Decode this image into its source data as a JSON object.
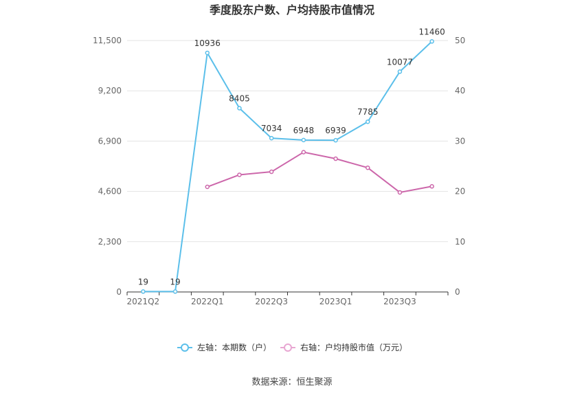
{
  "chart_data": {
    "type": "line",
    "title": "季度股东户数、户均持股市值情况",
    "x": [
      "2021Q2",
      "2021Q3",
      "2022Q1",
      "2022Q2",
      "2022Q3",
      "2022Q4",
      "2023Q1",
      "2023Q2",
      "2023Q3",
      "2023Q4"
    ],
    "x_tick_labels": [
      "2021Q2",
      "2022Q1",
      "2022Q3",
      "2023Q1",
      "2023Q3"
    ],
    "left_axis": {
      "ylim": [
        0,
        11500
      ],
      "ticks": [
        "0",
        "2,300",
        "4,600",
        "6,900",
        "9,200",
        "11,500"
      ]
    },
    "right_axis": {
      "ylim": [
        0,
        50
      ],
      "ticks": [
        "0",
        "10",
        "20",
        "30",
        "40",
        "50"
      ]
    },
    "series": [
      {
        "name": "左轴：本期数（户）",
        "axis": "left",
        "color": "#5bbfea",
        "values": [
          19,
          19,
          10936,
          8405,
          7034,
          6948,
          6939,
          7785,
          10077,
          11460
        ],
        "labels": [
          "19",
          "19",
          "10936",
          "8405",
          "7034",
          "6948",
          "6939",
          "7785",
          "10077",
          "11460"
        ]
      },
      {
        "name": "右轴：户均持股市值（万元）",
        "axis": "right",
        "color": "#cc66aa",
        "values": [
          null,
          null,
          20.9,
          23.3,
          23.9,
          27.8,
          26.5,
          24.7,
          19.8,
          21.0
        ]
      }
    ],
    "grid": true,
    "legend_position": "bottom"
  },
  "source": "数据来源：恒生聚源"
}
